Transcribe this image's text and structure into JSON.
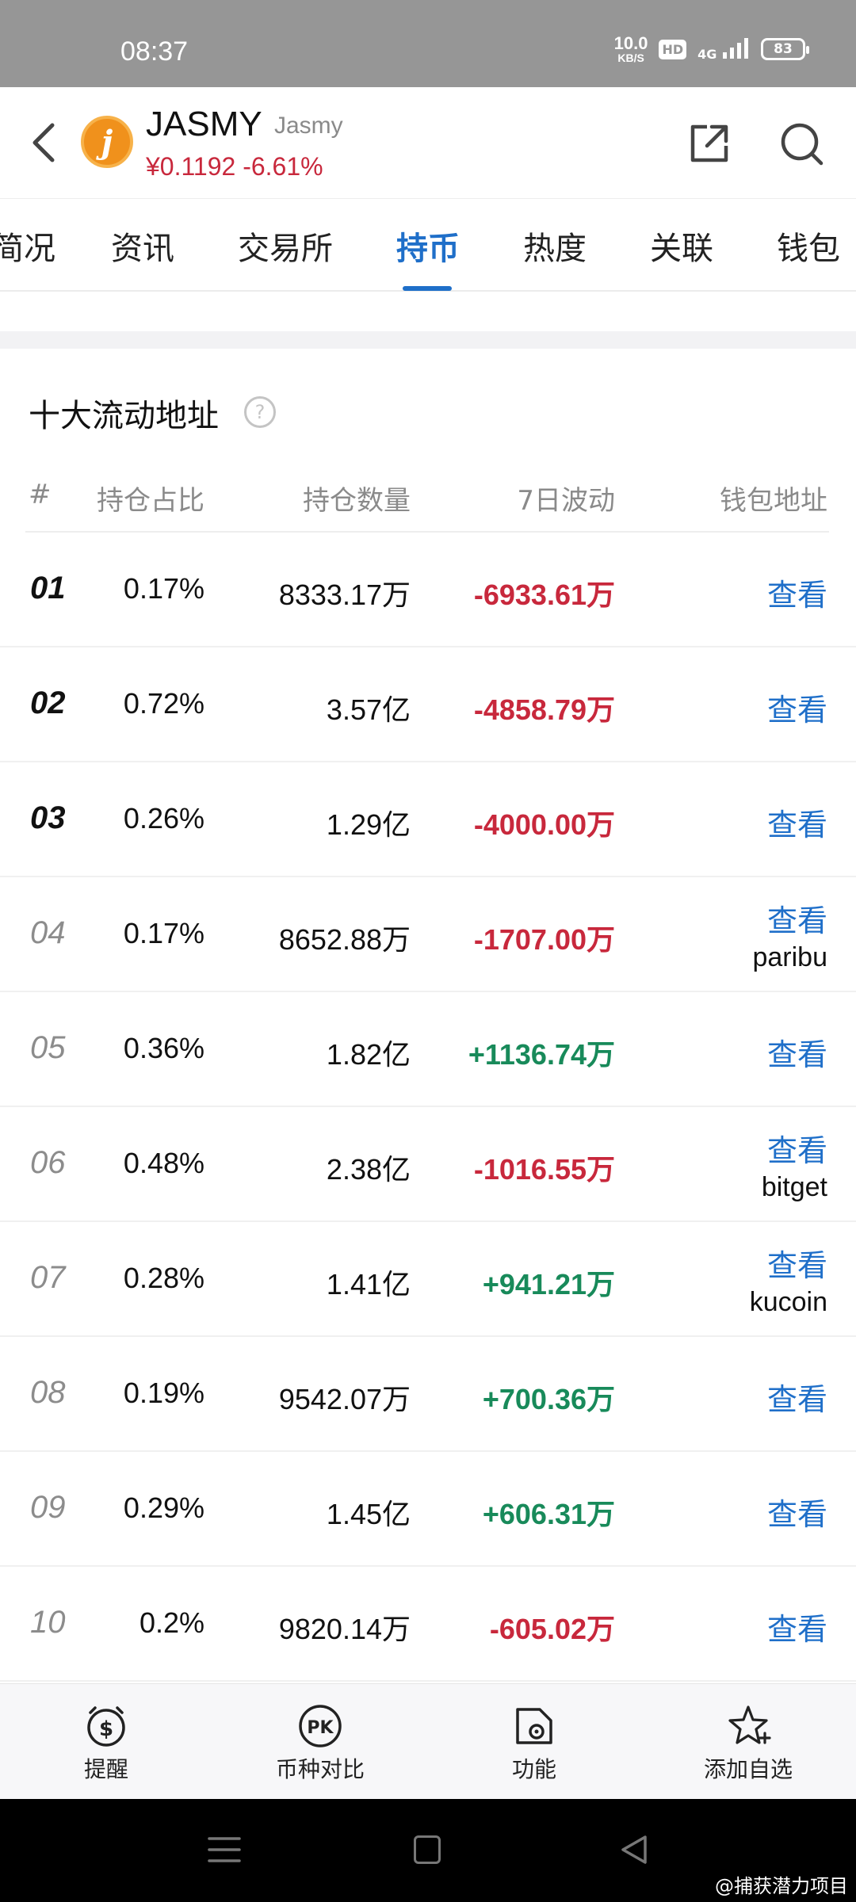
{
  "status_bar": {
    "time": "08:37",
    "net_speed": "10.0",
    "net_unit": "KB/S",
    "hd": "HD",
    "network": "4G",
    "battery": "83"
  },
  "header": {
    "coin_symbol": "JASMY",
    "coin_name": "Jasmy",
    "price_line": "¥0.1192 -6.61%",
    "logo_letter": "j"
  },
  "tabs": [
    {
      "label": "简况"
    },
    {
      "label": "资讯"
    },
    {
      "label": "交易所"
    },
    {
      "label": "持币"
    },
    {
      "label": "热度"
    },
    {
      "label": "关联"
    },
    {
      "label": "钱包"
    }
  ],
  "active_tab": 3,
  "section": {
    "title": "十大流动地址",
    "help": "?"
  },
  "table": {
    "headers": {
      "rank": "#",
      "pct": "持仓占比",
      "qty": "持仓数量",
      "change": "7日波动",
      "addr": "钱包地址"
    },
    "rows": [
      {
        "rank": "01",
        "pct": "0.17%",
        "qty": "8333.17万",
        "change": "-6933.61万",
        "dir": "neg",
        "view": "查看",
        "tag": ""
      },
      {
        "rank": "02",
        "pct": "0.72%",
        "qty": "3.57亿",
        "change": "-4858.79万",
        "dir": "neg",
        "view": "查看",
        "tag": ""
      },
      {
        "rank": "03",
        "pct": "0.26%",
        "qty": "1.29亿",
        "change": "-4000.00万",
        "dir": "neg",
        "view": "查看",
        "tag": ""
      },
      {
        "rank": "04",
        "pct": "0.17%",
        "qty": "8652.88万",
        "change": "-1707.00万",
        "dir": "neg",
        "view": "查看",
        "tag": "paribu"
      },
      {
        "rank": "05",
        "pct": "0.36%",
        "qty": "1.82亿",
        "change": "+1136.74万",
        "dir": "pos",
        "view": "查看",
        "tag": ""
      },
      {
        "rank": "06",
        "pct": "0.48%",
        "qty": "2.38亿",
        "change": "-1016.55万",
        "dir": "neg",
        "view": "查看",
        "tag": "bitget"
      },
      {
        "rank": "07",
        "pct": "0.28%",
        "qty": "1.41亿",
        "change": "+941.21万",
        "dir": "pos",
        "view": "查看",
        "tag": "kucoin"
      },
      {
        "rank": "08",
        "pct": "0.19%",
        "qty": "9542.07万",
        "change": "+700.36万",
        "dir": "pos",
        "view": "查看",
        "tag": ""
      },
      {
        "rank": "09",
        "pct": "0.29%",
        "qty": "1.45亿",
        "change": "+606.31万",
        "dir": "pos",
        "view": "查看",
        "tag": ""
      },
      {
        "rank": "10",
        "pct": "0.2%",
        "qty": "9820.14万",
        "change": "-605.02万",
        "dir": "neg",
        "view": "查看",
        "tag": ""
      }
    ]
  },
  "bottom_bar": [
    {
      "label": "提醒",
      "icon": "alarm-clock-dollar-icon"
    },
    {
      "label": "币种对比",
      "icon": "pk-icon"
    },
    {
      "label": "功能",
      "icon": "toolbox-icon"
    },
    {
      "label": "添加自选",
      "icon": "star-plus-icon"
    }
  ],
  "watermark": "@捕获潜力项目",
  "colors": {
    "accent": "#1f6fc9",
    "negative": "#c8283c",
    "positive": "#188a5a"
  }
}
